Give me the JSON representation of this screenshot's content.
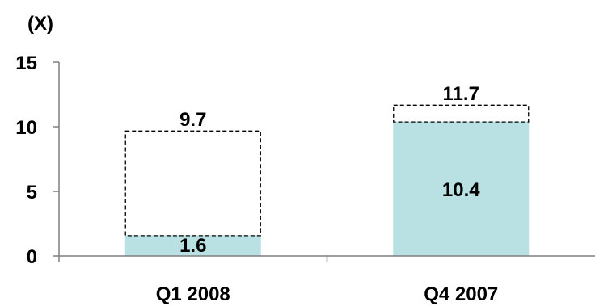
{
  "chart_data": {
    "type": "bar",
    "unit_label": "(X)",
    "categories": [
      "Q1 2008",
      "Q4 2007"
    ],
    "series": [
      {
        "values": [
          1.6,
          10.4
        ],
        "color": "#b9e0e3",
        "style": "solid"
      },
      {
        "values": [
          9.7,
          11.7
        ],
        "color": "#000000",
        "style": "dashed-outline"
      }
    ],
    "data_labels": {
      "solid": [
        "1.6",
        "10.4"
      ],
      "dashed": [
        "9.7",
        "11.7"
      ]
    },
    "yticks": [
      "0",
      "5",
      "10",
      "15"
    ],
    "ylim": [
      0,
      15
    ],
    "grid": false,
    "legend": "none"
  }
}
